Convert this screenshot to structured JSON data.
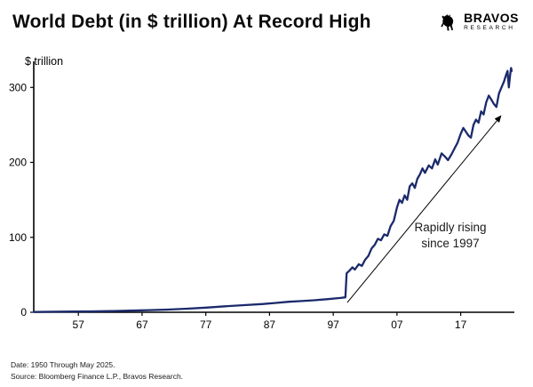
{
  "header": {
    "title": "World Debt (in $ trillion) At Record High"
  },
  "logo": {
    "name": "BRAVOS",
    "subname": "RESEARCH",
    "icon": "bull-icon"
  },
  "footer": {
    "line1": "Date: 1950 Through May 2025.",
    "line2": "Source: Bloomberg Finance L.P., Bravos Research."
  },
  "chart_data": {
    "type": "line",
    "title": "World Debt (in $ trillion) At Record High",
    "ylabel": "$ trillion",
    "xlabel": "",
    "grid": false,
    "legend": "none",
    "x_range": [
      1950,
      2025
    ],
    "ylim": [
      0,
      330
    ],
    "line_color": "#1b2a6b",
    "axis_color": "#000000",
    "y_ticks": [
      0,
      100,
      200,
      300
    ],
    "x_ticks": [
      {
        "year": 1957,
        "label": "57"
      },
      {
        "year": 1967,
        "label": "67"
      },
      {
        "year": 1977,
        "label": "77"
      },
      {
        "year": 1987,
        "label": "87"
      },
      {
        "year": 1997,
        "label": "97"
      },
      {
        "year": 2007,
        "label": "07"
      },
      {
        "year": 2017,
        "label": "17"
      }
    ],
    "points": [
      [
        1950,
        0.5
      ],
      [
        1953,
        0.7
      ],
      [
        1956,
        0.9
      ],
      [
        1959,
        1.2
      ],
      [
        1962,
        1.6
      ],
      [
        1965,
        2.1
      ],
      [
        1968,
        2.8
      ],
      [
        1971,
        3.6
      ],
      [
        1974,
        4.8
      ],
      [
        1977,
        6.2
      ],
      [
        1980,
        8
      ],
      [
        1983,
        9.5
      ],
      [
        1986,
        11
      ],
      [
        1988,
        12.5
      ],
      [
        1990,
        14
      ],
      [
        1992,
        15
      ],
      [
        1994,
        16
      ],
      [
        1996,
        17.5
      ],
      [
        1998,
        19
      ],
      [
        1998.9,
        20
      ],
      [
        1999.1,
        52
      ],
      [
        1999.6,
        56
      ],
      [
        2000,
        60
      ],
      [
        2000.4,
        57
      ],
      [
        2001,
        64
      ],
      [
        2001.5,
        62
      ],
      [
        2002,
        70
      ],
      [
        2002.5,
        75
      ],
      [
        2003,
        85
      ],
      [
        2003.5,
        90
      ],
      [
        2004,
        98
      ],
      [
        2004.5,
        96
      ],
      [
        2005,
        104
      ],
      [
        2005.5,
        102
      ],
      [
        2006,
        115
      ],
      [
        2006.5,
        122
      ],
      [
        2007,
        140
      ],
      [
        2007.4,
        150
      ],
      [
        2007.8,
        146
      ],
      [
        2008.2,
        156
      ],
      [
        2008.6,
        150
      ],
      [
        2009,
        168
      ],
      [
        2009.4,
        172
      ],
      [
        2009.8,
        166
      ],
      [
        2010.2,
        178
      ],
      [
        2010.6,
        184
      ],
      [
        2011,
        192
      ],
      [
        2011.4,
        186
      ],
      [
        2012,
        196
      ],
      [
        2012.5,
        192
      ],
      [
        2013,
        204
      ],
      [
        2013.4,
        197
      ],
      [
        2014,
        212
      ],
      [
        2014.5,
        208
      ],
      [
        2015,
        203
      ],
      [
        2015.5,
        210
      ],
      [
        2016,
        218
      ],
      [
        2016.5,
        226
      ],
      [
        2017,
        238
      ],
      [
        2017.4,
        246
      ],
      [
        2017.8,
        241
      ],
      [
        2018.2,
        236
      ],
      [
        2018.6,
        233
      ],
      [
        2019,
        250
      ],
      [
        2019.4,
        257
      ],
      [
        2019.8,
        253
      ],
      [
        2020.2,
        268
      ],
      [
        2020.6,
        264
      ],
      [
        2021,
        280
      ],
      [
        2021.4,
        289
      ],
      [
        2021.8,
        284
      ],
      [
        2022.2,
        278
      ],
      [
        2022.6,
        274
      ],
      [
        2023,
        292
      ],
      [
        2023.4,
        300
      ],
      [
        2023.8,
        308
      ],
      [
        2024.1,
        316
      ],
      [
        2024.35,
        322
      ],
      [
        2024.55,
        300
      ],
      [
        2024.75,
        316
      ],
      [
        2024.9,
        326
      ],
      [
        2025,
        322
      ]
    ],
    "annotation": {
      "line1": "Rapidly rising",
      "line2": "since 1997",
      "arrow_from": [
        1999.2,
        13
      ],
      "arrow_to": [
        2023.3,
        262
      ]
    }
  }
}
